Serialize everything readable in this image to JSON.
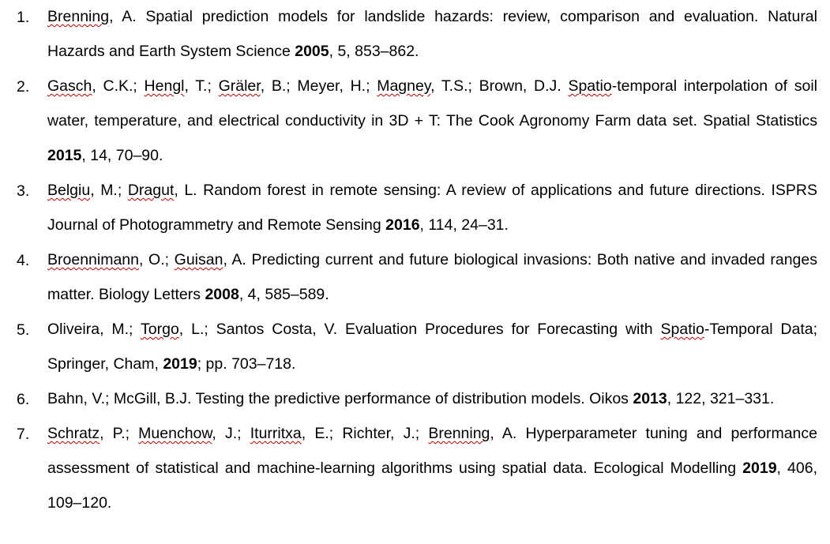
{
  "references": [
    {
      "number": "1.",
      "parts": [
        {
          "text": "Brenning",
          "squiggle": true
        },
        {
          "text": ", A. Spatial prediction models for landslide hazards: review, comparison and evaluation. Natural Hazards and Earth System Science "
        },
        {
          "text": "2005",
          "bold": true
        },
        {
          "text": ", 5, 853–862."
        }
      ]
    },
    {
      "number": "2.",
      "parts": [
        {
          "text": "Gasch",
          "squiggle": true
        },
        {
          "text": ", C.K.; "
        },
        {
          "text": "Hengl",
          "squiggle": true
        },
        {
          "text": ", T.; "
        },
        {
          "text": "Gräler",
          "squiggle": true
        },
        {
          "text": ", B.; Meyer, H.; "
        },
        {
          "text": "Magney",
          "squiggle": true
        },
        {
          "text": ", T.S.; Brown, D.J. "
        },
        {
          "text": "Spatio",
          "squiggle": true
        },
        {
          "text": "-temporal interpolation of soil water, temperature, and electrical conductivity in 3D + T: The Cook Agronomy Farm data set. Spatial Statistics "
        },
        {
          "text": "2015",
          "bold": true
        },
        {
          "text": ", 14, 70–90."
        }
      ]
    },
    {
      "number": "3.",
      "parts": [
        {
          "text": "Belgiu",
          "squiggle": true
        },
        {
          "text": ", M.; "
        },
        {
          "text": "Dragut",
          "squiggle": true
        },
        {
          "text": ", L. Random forest in remote sensing: A review of applications and future directions. ISPRS Journal of Photogrammetry and Remote Sensing "
        },
        {
          "text": "2016",
          "bold": true
        },
        {
          "text": ", 114, 24–31."
        }
      ]
    },
    {
      "number": "4.",
      "parts": [
        {
          "text": "Broennimann",
          "squiggle": true
        },
        {
          "text": ", O.; "
        },
        {
          "text": "Guisan",
          "squiggle": true
        },
        {
          "text": ", A. Predicting current and future biological invasions: Both native and invaded ranges matter. Biology Letters "
        },
        {
          "text": "2008",
          "bold": true
        },
        {
          "text": ", 4, 585–589."
        }
      ]
    },
    {
      "number": "5.",
      "parts": [
        {
          "text": "Oliveira, M.; "
        },
        {
          "text": "Torgo",
          "squiggle": true
        },
        {
          "text": ", L.; Santos Costa, V. Evaluation Procedures for Forecasting with "
        },
        {
          "text": "Spatio",
          "squiggle": true
        },
        {
          "text": "-Temporal Data; Springer, Cham, "
        },
        {
          "text": "2019",
          "bold": true
        },
        {
          "text": "; pp. 703–718."
        }
      ]
    },
    {
      "number": "6.",
      "parts": [
        {
          "text": "Bahn, V.; McGill, B.J. Testing the predictive performance of distribution models. Oikos "
        },
        {
          "text": "2013",
          "bold": true
        },
        {
          "text": ", 122, 321–331."
        }
      ]
    },
    {
      "number": "7.",
      "parts": [
        {
          "text": "Schratz",
          "squiggle": true
        },
        {
          "text": ", P.; "
        },
        {
          "text": "Muenchow",
          "squiggle": true
        },
        {
          "text": ", J.; "
        },
        {
          "text": "Iturritxa",
          "squiggle": true
        },
        {
          "text": ", E.; Richter, J.; "
        },
        {
          "text": "Brenning",
          "squiggle": true
        },
        {
          "text": ", A. Hyperparameter tuning and performance assessment of statistical and machine-learning algorithms using spatial data. Ecological Modelling "
        },
        {
          "text": "2019",
          "bold": true
        },
        {
          "text": ", 406, 109–120."
        }
      ]
    }
  ]
}
